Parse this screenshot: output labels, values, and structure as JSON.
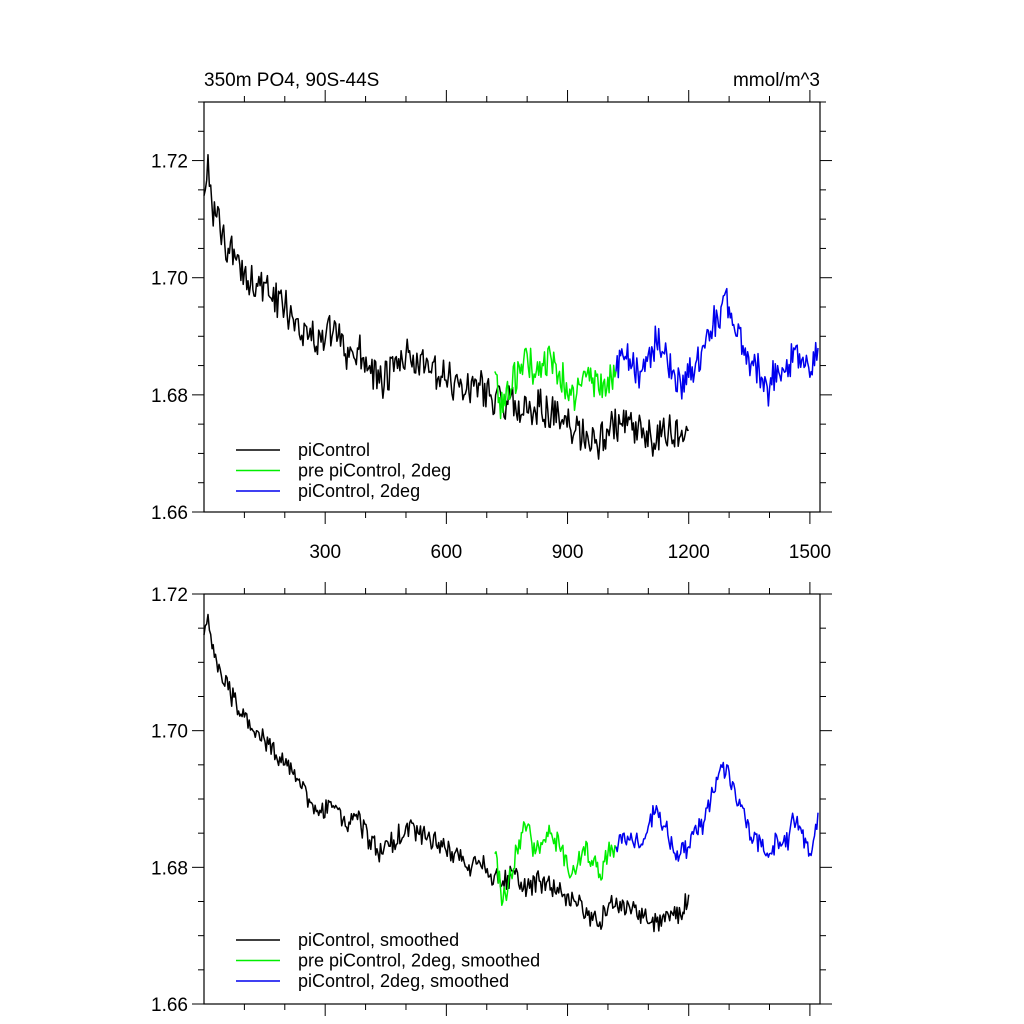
{
  "chart_data": [
    {
      "type": "line",
      "title": "350m PO4, 90S-44S",
      "units_label": "mmol/m^3",
      "xlabel": "",
      "ylabel": "",
      "xlim": [
        0,
        1525
      ],
      "ylim": [
        1.66,
        1.73
      ],
      "x_ticks": [
        300,
        600,
        900,
        1200,
        1500
      ],
      "x_tick_labels": [
        "300",
        "600",
        "900",
        "1200",
        "1500"
      ],
      "y_ticks": [
        1.66,
        1.68,
        1.7,
        1.72
      ],
      "y_tick_labels": [
        "1.66",
        "1.68",
        "1.70",
        "1.72"
      ],
      "grid": false,
      "legend_position": "bottom-left",
      "series": [
        {
          "name": "piControl",
          "color": "#000000",
          "x": [
            0,
            10,
            20,
            40,
            60,
            80,
            100,
            130,
            160,
            200,
            230,
            260,
            290,
            320,
            350,
            380,
            410,
            440,
            470,
            500,
            530,
            560,
            590,
            620,
            650,
            680,
            710,
            740,
            770,
            800,
            830,
            860,
            890,
            920,
            950,
            980,
            1000,
            1030,
            1060,
            1090,
            1120,
            1150,
            1180,
            1200
          ],
          "y": [
            1.714,
            1.721,
            1.712,
            1.708,
            1.705,
            1.703,
            1.701,
            1.699,
            1.697,
            1.695,
            1.693,
            1.69,
            1.689,
            1.691,
            1.687,
            1.688,
            1.685,
            1.682,
            1.684,
            1.687,
            1.685,
            1.684,
            1.683,
            1.682,
            1.681,
            1.682,
            1.68,
            1.678,
            1.679,
            1.677,
            1.678,
            1.677,
            1.675,
            1.674,
            1.673,
            1.672,
            1.674,
            1.675,
            1.674,
            1.673,
            1.672,
            1.674,
            1.673,
            1.674
          ]
        },
        {
          "name": "pre piControl, 2deg",
          "color": "#00ee00",
          "x": [
            720,
            740,
            760,
            780,
            800,
            820,
            840,
            860,
            880,
            900,
            920,
            940,
            960,
            980,
            1000,
            1020
          ],
          "y": [
            1.684,
            1.677,
            1.681,
            1.685,
            1.687,
            1.683,
            1.685,
            1.686,
            1.684,
            1.68,
            1.679,
            1.684,
            1.682,
            1.68,
            1.683,
            1.684
          ]
        },
        {
          "name": "piControl, 2deg",
          "color": "#0000ee",
          "x": [
            1020,
            1040,
            1060,
            1080,
            1100,
            1120,
            1140,
            1160,
            1180,
            1200,
            1220,
            1240,
            1260,
            1280,
            1300,
            1320,
            1340,
            1360,
            1380,
            1400,
            1420,
            1440,
            1460,
            1480,
            1500,
            1520
          ],
          "y": [
            1.684,
            1.686,
            1.685,
            1.684,
            1.687,
            1.689,
            1.687,
            1.684,
            1.682,
            1.683,
            1.686,
            1.688,
            1.692,
            1.695,
            1.695,
            1.69,
            1.688,
            1.685,
            1.683,
            1.681,
            1.685,
            1.684,
            1.688,
            1.686,
            1.683,
            1.688
          ]
        }
      ]
    },
    {
      "type": "line",
      "title": "",
      "xlabel": "",
      "ylabel": "",
      "xlim": [
        0,
        1525
      ],
      "ylim": [
        1.66,
        1.72
      ],
      "x_ticks": [
        300,
        600,
        900,
        1200,
        1500
      ],
      "y_ticks": [
        1.66,
        1.68,
        1.7,
        1.72
      ],
      "y_tick_labels": [
        "1.66",
        "1.68",
        "1.70",
        "1.72"
      ],
      "grid": false,
      "legend_position": "bottom-left",
      "series": [
        {
          "name": "piControl, smoothed",
          "color": "#000000",
          "x": [
            0,
            10,
            20,
            40,
            60,
            80,
            100,
            130,
            160,
            200,
            230,
            260,
            290,
            320,
            350,
            380,
            410,
            440,
            470,
            500,
            530,
            560,
            590,
            620,
            650,
            680,
            710,
            740,
            770,
            800,
            830,
            860,
            890,
            920,
            950,
            980,
            1000,
            1030,
            1060,
            1090,
            1120,
            1150,
            1180,
            1200
          ],
          "y": [
            1.714,
            1.717,
            1.712,
            1.709,
            1.706,
            1.704,
            1.702,
            1.7,
            1.698,
            1.695,
            1.693,
            1.69,
            1.688,
            1.689,
            1.686,
            1.687,
            1.684,
            1.682,
            1.684,
            1.686,
            1.685,
            1.684,
            1.683,
            1.682,
            1.68,
            1.681,
            1.679,
            1.678,
            1.679,
            1.677,
            1.678,
            1.677,
            1.676,
            1.675,
            1.673,
            1.672,
            1.674,
            1.675,
            1.674,
            1.673,
            1.672,
            1.673,
            1.673,
            1.676
          ]
        },
        {
          "name": "pre piControl, 2deg, smoothed",
          "color": "#00ee00",
          "x": [
            720,
            740,
            760,
            780,
            800,
            820,
            840,
            860,
            880,
            900,
            920,
            940,
            960,
            980,
            1000,
            1020
          ],
          "y": [
            1.682,
            1.675,
            1.679,
            1.684,
            1.686,
            1.682,
            1.684,
            1.685,
            1.683,
            1.68,
            1.679,
            1.683,
            1.681,
            1.679,
            1.682,
            1.683
          ]
        },
        {
          "name": "piControl, 2deg, smoothed",
          "color": "#0000ee",
          "x": [
            1020,
            1040,
            1060,
            1080,
            1100,
            1120,
            1140,
            1160,
            1180,
            1200,
            1220,
            1240,
            1260,
            1280,
            1300,
            1320,
            1340,
            1360,
            1380,
            1400,
            1420,
            1440,
            1460,
            1480,
            1500,
            1520
          ],
          "y": [
            1.683,
            1.685,
            1.684,
            1.683,
            1.686,
            1.689,
            1.686,
            1.683,
            1.682,
            1.683,
            1.685,
            1.687,
            1.691,
            1.695,
            1.694,
            1.689,
            1.687,
            1.684,
            1.683,
            1.682,
            1.684,
            1.683,
            1.687,
            1.685,
            1.682,
            1.688
          ]
        }
      ]
    }
  ]
}
